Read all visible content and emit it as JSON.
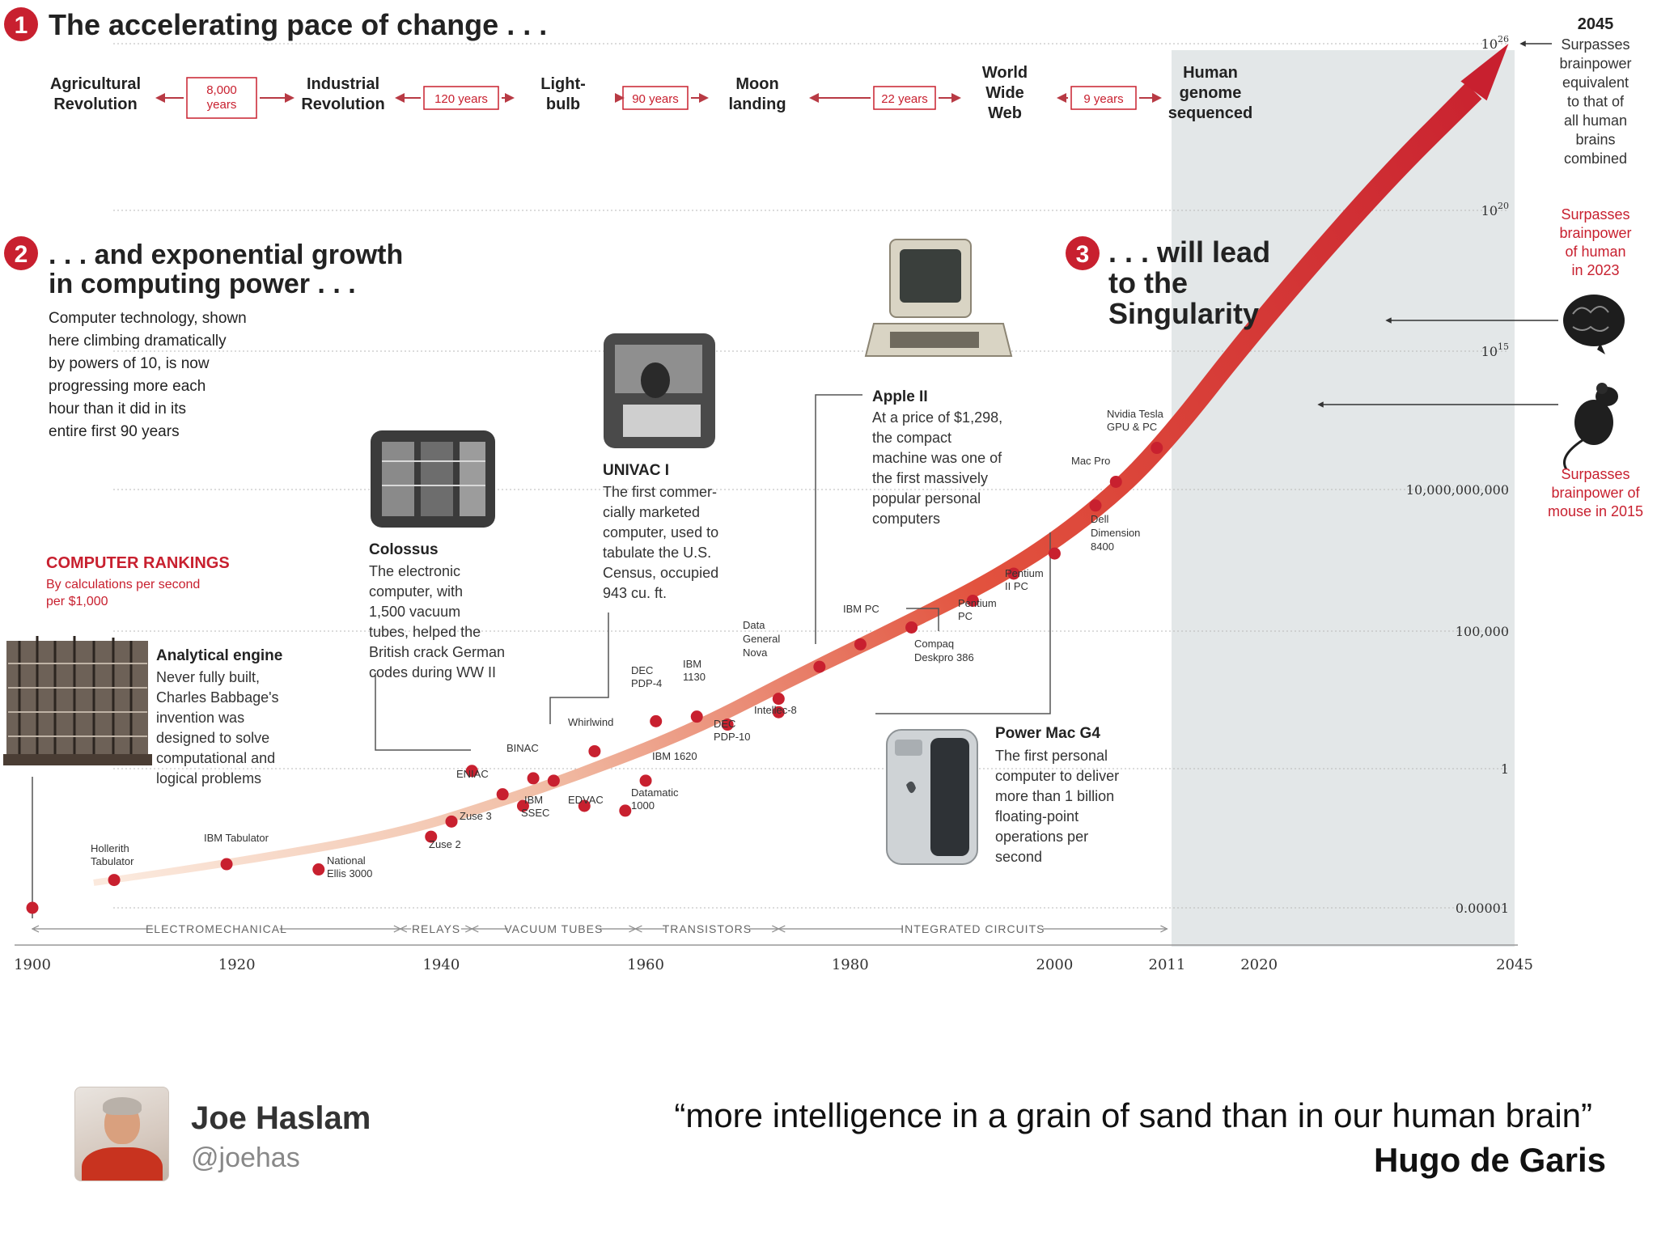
{
  "header": {
    "section1_number": "1",
    "section1_title": "The accelerating pace of change . . .",
    "section2_number": "2",
    "section2_title_line1": ". . . and exponential growth",
    "section2_title_line2": "in computing power . . .",
    "section2_body": [
      "Computer technology, shown",
      "here climbing dramatically",
      "by powers of 10, is now",
      "progressing more each",
      "hour than it did in its",
      "entire first 90 years"
    ],
    "section3_number": "3",
    "section3_title": [
      ". . . will lead",
      "to the",
      "Singularity"
    ]
  },
  "timeline": {
    "events": [
      {
        "label": [
          "Agricultural",
          "Revolution"
        ]
      },
      {
        "label": [
          "Industrial",
          "Revolution"
        ]
      },
      {
        "label": [
          "Light-",
          "bulb"
        ]
      },
      {
        "label": [
          "Moon",
          "landing"
        ]
      },
      {
        "label": [
          "World",
          "Wide",
          "Web"
        ]
      },
      {
        "label": [
          "Human",
          "genome",
          "sequenced"
        ]
      }
    ],
    "intervals": [
      {
        "label": [
          "8,000",
          "years"
        ]
      },
      {
        "label": [
          "120 years"
        ]
      },
      {
        "label": [
          "90 years"
        ]
      },
      {
        "label": [
          "22 years"
        ]
      },
      {
        "label": [
          "9 years"
        ]
      }
    ]
  },
  "rankings": {
    "title": "COMPUTER RANKINGS",
    "subtitle": [
      "By calculations per second",
      "per $1,000"
    ]
  },
  "callouts": {
    "analytical": {
      "title": "Analytical engine",
      "body": [
        "Never fully built,",
        "Charles Babbage's",
        "invention was",
        "designed to solve",
        "computational and",
        "logical problems"
      ]
    },
    "colossus": {
      "title": "Colossus",
      "body": [
        "The electronic",
        "computer, with",
        "1,500 vacuum",
        "tubes, helped the",
        "British crack German",
        "codes during WW II"
      ]
    },
    "univac": {
      "title": "UNIVAC I",
      "body": [
        "The first commer-",
        "cially marketed",
        "computer, used to",
        "tabulate the U.S.",
        "Census, occupied",
        "943 cu. ft."
      ]
    },
    "apple": {
      "title": "Apple II",
      "body": [
        "At a price of $1,298,",
        "the compact",
        "machine was one of",
        "the first massively",
        "popular personal",
        "computers"
      ]
    },
    "powermac": {
      "title": "Power Mac G4",
      "body": [
        "The first personal",
        "computer to deliver",
        "more than 1 billion",
        "floating-point",
        "operations per",
        "second"
      ]
    }
  },
  "right_panel": {
    "year_2045": "2045",
    "surpasses_all": [
      "Surpasses",
      "brainpower",
      "equivalent",
      "to that of",
      "all human",
      "brains",
      "combined"
    ],
    "surpasses_human": [
      "Surpasses",
      "brainpower",
      "of human",
      "in 2023"
    ],
    "surpasses_mouse": [
      "Surpasses",
      "brainpower of",
      "mouse in 2015"
    ]
  },
  "eras": [
    "ELECTROMECHANICAL",
    "RELAYS",
    "VACUUM TUBES",
    "TRANSISTORS",
    "INTEGRATED CIRCUITS"
  ],
  "colors": {
    "accent_red": "#c8202f",
    "light_red": "#f2c9b6",
    "panel_gray": "#e3e7e8",
    "text_dark": "#222222",
    "text_gray": "#555555"
  },
  "chart_data": {
    "type": "scatter",
    "title": "",
    "xlabel": "",
    "ylabel": "",
    "y_scale": "log",
    "xlim": [
      1900,
      2045
    ],
    "x_ticks": [
      "1900",
      "1920",
      "1940",
      "1960",
      "1980",
      "2000",
      "2011",
      "2020",
      "2045"
    ],
    "y_ticks": [
      {
        "label": "0.00001",
        "base": "",
        "exp": "",
        "value": 1e-05
      },
      {
        "label": "1",
        "base": "",
        "exp": "",
        "value": 1
      },
      {
        "label": "100,000",
        "base": "",
        "exp": "",
        "value": 100000
      },
      {
        "label": "10,000,000,000",
        "base": "",
        "exp": "",
        "value": 10000000000
      },
      {
        "label": "",
        "base": "10",
        "exp": "15",
        "value": 1000000000000000.0
      },
      {
        "label": "",
        "base": "10",
        "exp": "20",
        "value": 1e+20
      },
      {
        "label": "",
        "base": "10",
        "exp": "26",
        "value": 1e+26
      }
    ],
    "points": [
      {
        "name": "",
        "x": 1900,
        "y": 1e-05
      },
      {
        "name": "Hollerith Tabulator",
        "x": 1908,
        "y": 0.0001
      },
      {
        "name": "IBM Tabulator",
        "x": 1919,
        "y": 0.00037
      },
      {
        "name": "National Ellis 3000",
        "x": 1928,
        "y": 0.00024
      },
      {
        "name": "Zuse 2",
        "x": 1939,
        "y": 0.0036
      },
      {
        "name": "Zuse 3",
        "x": 1941,
        "y": 0.0126
      },
      {
        "name": "ENIAC",
        "x": 1946,
        "y": 0.12
      },
      {
        "name": "",
        "x": 1943,
        "y": 0.83
      },
      {
        "name": "BINAC",
        "x": 1949,
        "y": 0.45
      },
      {
        "name": "IBM SSEC",
        "x": 1948,
        "y": 0.046
      },
      {
        "name": "",
        "x": 1951,
        "y": 0.37
      },
      {
        "name": "EDVAC",
        "x": 1954,
        "y": 0.046
      },
      {
        "name": "Whirlwind",
        "x": 1955,
        "y": 4.3
      },
      {
        "name": "Datamatic 1000",
        "x": 1958,
        "y": 0.031
      },
      {
        "name": "IBM 1620",
        "x": 1960,
        "y": 0.37
      },
      {
        "name": "DEC PDP-4",
        "x": 1961,
        "y": 53
      },
      {
        "name": "IBM 1130",
        "x": 1965,
        "y": 78
      },
      {
        "name": "DEC PDP-10",
        "x": 1968,
        "y": 40
      },
      {
        "name": "Intellec-8",
        "x": 1973,
        "y": 113
      },
      {
        "name": "Data General Nova",
        "x": 1973,
        "y": 347
      },
      {
        "name": "Apple II",
        "x": 1977,
        "y": 5050
      },
      {
        "name": "IBM PC",
        "x": 1981,
        "y": 33000
      },
      {
        "name": "Compaq Deskpro 386",
        "x": 1986,
        "y": 135000
      },
      {
        "name": "Pentium PC",
        "x": 1992,
        "y": 1180000
      },
      {
        "name": "Pentium II PC",
        "x": 1996,
        "y": 10700000
      },
      {
        "name": "Power Mac G4",
        "x": 2000,
        "y": 55000000
      },
      {
        "name": "Dell Dimension 8400",
        "x": 2004,
        "y": 2720000000
      },
      {
        "name": "Mac Pro",
        "x": 2006,
        "y": 19000000000
      },
      {
        "name": "Nvidia Tesla GPU & PC",
        "x": 2010,
        "y": 320000000000
      }
    ],
    "projection_points": [
      {
        "name": "human",
        "x": 2023,
        "y": 1e+18
      },
      {
        "name": "2045",
        "x": 2045,
        "y": 1e+26
      }
    ],
    "mouse_year": 2015
  },
  "footer": {
    "name": "Joe Haslam",
    "handle": "@joehas",
    "quote": "“more intelligence in a grain of sand than in our human brain”",
    "author": "Hugo de Garis"
  }
}
